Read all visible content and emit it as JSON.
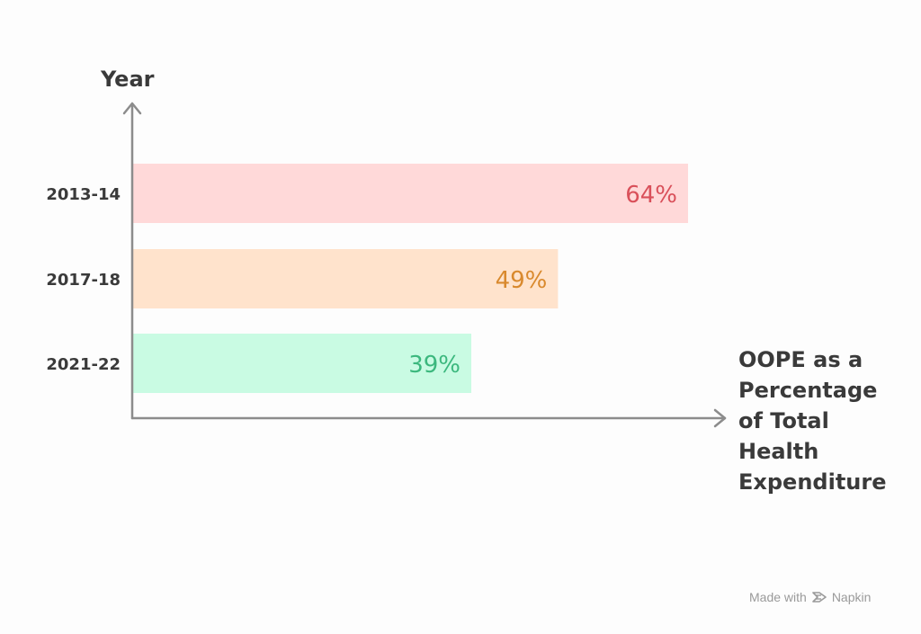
{
  "chart_data": {
    "type": "bar",
    "orientation": "horizontal",
    "categories": [
      "2013-14",
      "2017-18",
      "2021-22"
    ],
    "values": [
      64,
      49,
      39
    ],
    "value_labels": [
      "64%",
      "49%",
      "39%"
    ],
    "ylabel": "Year",
    "xlabel_lines": [
      "OOPE as a",
      "Percentage",
      "of Total",
      "Health",
      "Expenditure"
    ],
    "xlim": [
      0,
      100
    ],
    "grid": false,
    "colors": {
      "bar_fills": [
        "#ffd9d9",
        "#ffe3cc",
        "#c9fbe3"
      ],
      "label_colors": [
        "#d9505a",
        "#d9892d",
        "#3cb87e"
      ],
      "axis": "#8c8c8c",
      "text": "#3a3a3a"
    }
  },
  "footer": {
    "made_with": "Made with",
    "brand": "Napkin",
    "icon": "napkin-logo-icon"
  }
}
